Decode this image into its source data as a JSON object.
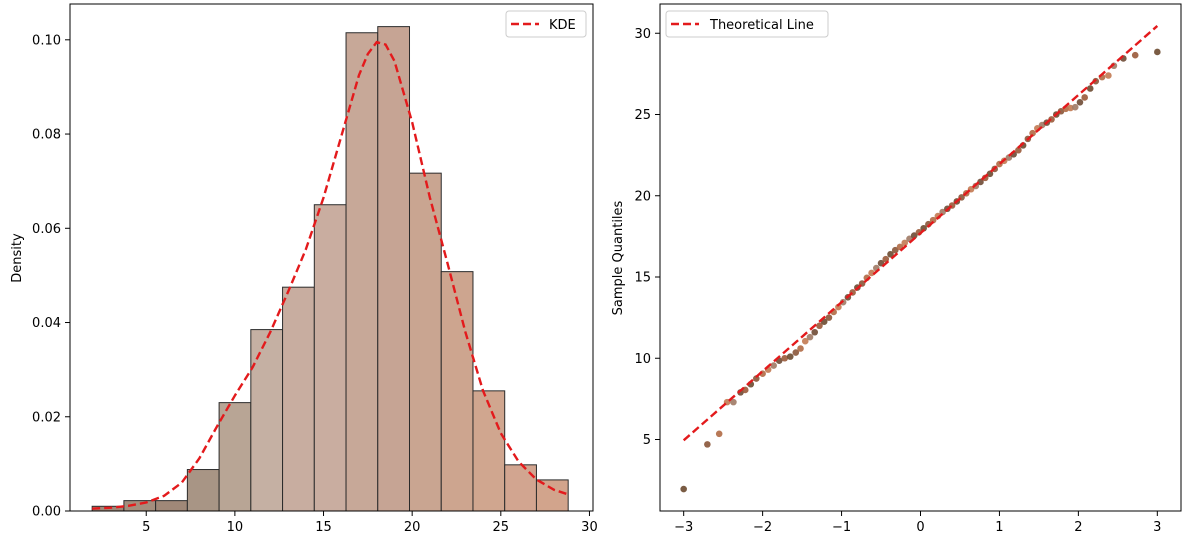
{
  "chart_data": [
    {
      "type": "bar",
      "subtype": "histogram-with-kde",
      "title": "",
      "xlabel": "",
      "ylabel": "Density",
      "xlim": [
        0.7,
        30.2
      ],
      "ylim": [
        0,
        0.1076
      ],
      "xticks": [
        5,
        10,
        15,
        20,
        25,
        30
      ],
      "yticks": [
        0.0,
        0.02,
        0.04,
        0.06,
        0.08,
        0.1
      ],
      "ytick_labels": [
        "0.00",
        "0.02",
        "0.04",
        "0.06",
        "0.08",
        "0.10"
      ],
      "bins": [
        {
          "x0": 1.95,
          "x1": 3.74,
          "density": 0.001
        },
        {
          "x0": 3.74,
          "x1": 5.53,
          "density": 0.0022
        },
        {
          "x0": 5.53,
          "x1": 7.32,
          "density": 0.0022
        },
        {
          "x0": 7.32,
          "x1": 9.11,
          "density": 0.0088
        },
        {
          "x0": 9.11,
          "x1": 10.9,
          "density": 0.023
        },
        {
          "x0": 10.9,
          "x1": 12.69,
          "density": 0.0385
        },
        {
          "x0": 12.69,
          "x1": 14.48,
          "density": 0.0475
        },
        {
          "x0": 14.48,
          "x1": 16.27,
          "density": 0.065
        },
        {
          "x0": 16.27,
          "x1": 18.06,
          "density": 0.1015
        },
        {
          "x0": 18.06,
          "x1": 19.85,
          "density": 0.1028
        },
        {
          "x0": 19.85,
          "x1": 21.64,
          "density": 0.0717
        },
        {
          "x0": 21.64,
          "x1": 23.43,
          "density": 0.0508
        },
        {
          "x0": 23.43,
          "x1": 25.22,
          "density": 0.0255
        },
        {
          "x0": 25.22,
          "x1": 27.01,
          "density": 0.0098
        },
        {
          "x0": 27.01,
          "x1": 28.8,
          "density": 0.0066
        }
      ],
      "bar_colors": [
        "#a08878",
        "#a48e7d",
        "#a08878",
        "#a89585",
        "#b8a595",
        "#c5b0a3",
        "#c8ada0",
        "#c9ada0",
        "#c7a898",
        "#c6a494",
        "#c9a591",
        "#cda58f",
        "#d0a68f",
        "#d2a590",
        "#d2a48c"
      ],
      "kde": {
        "name": "KDE",
        "color": "#e31a1c",
        "x": [
          1.95,
          3,
          4,
          5,
          6,
          7,
          8,
          9,
          10,
          11,
          12,
          13,
          14,
          15,
          16,
          17,
          17.5,
          18,
          18.5,
          19,
          20,
          21,
          22,
          23,
          24,
          25,
          26,
          27,
          28,
          28.9
        ],
        "y": [
          0.0005,
          0.0007,
          0.0011,
          0.0018,
          0.0032,
          0.006,
          0.0112,
          0.018,
          0.0245,
          0.0305,
          0.038,
          0.0465,
          0.0555,
          0.0665,
          0.0795,
          0.0925,
          0.097,
          0.0995,
          0.099,
          0.0955,
          0.0825,
          0.0665,
          0.0525,
          0.038,
          0.0255,
          0.0165,
          0.0105,
          0.0067,
          0.0045,
          0.0034
        ]
      },
      "legend": {
        "position": "top-right",
        "entries": [
          "KDE"
        ]
      }
    },
    {
      "type": "scatter",
      "subtype": "qq-plot",
      "title": "",
      "xlabel": "",
      "ylabel": "Sample Quantiles",
      "xlim": [
        -3.3,
        3.3
      ],
      "ylim": [
        0.6,
        31.8
      ],
      "xticks": [
        -3,
        -2,
        -1,
        0,
        1,
        2,
        3
      ],
      "yticks": [
        5,
        10,
        15,
        20,
        25,
        30
      ],
      "theoretical_line": {
        "name": "Theoretical Line",
        "color": "#e31a1c",
        "x": [
          -3,
          3
        ],
        "y": [
          4.95,
          30.45
        ]
      },
      "point_colors": [
        "#6b4a30",
        "#8a5538",
        "#b06a45",
        "#c27a52",
        "#a07a65",
        "#6f4b35",
        "#9a5a3a"
      ],
      "points": [
        [
          -3.0,
          1.95
        ],
        [
          -2.7,
          4.7
        ],
        [
          -2.55,
          5.35
        ],
        [
          -2.45,
          7.3
        ],
        [
          -2.37,
          7.3
        ],
        [
          -2.28,
          7.9
        ],
        [
          -2.22,
          8.05
        ],
        [
          -2.15,
          8.4
        ],
        [
          -2.08,
          8.75
        ],
        [
          -2.0,
          9.05
        ],
        [
          -1.93,
          9.3
        ],
        [
          -1.86,
          9.55
        ],
        [
          -1.79,
          9.85
        ],
        [
          -1.72,
          10.0
        ],
        [
          -1.65,
          10.1
        ],
        [
          -1.58,
          10.35
        ],
        [
          -1.52,
          10.6
        ],
        [
          -1.46,
          11.05
        ],
        [
          -1.4,
          11.3
        ],
        [
          -1.34,
          11.6
        ],
        [
          -1.28,
          12.0
        ],
        [
          -1.22,
          12.25
        ],
        [
          -1.16,
          12.5
        ],
        [
          -1.1,
          12.85
        ],
        [
          -1.04,
          13.15
        ],
        [
          -0.98,
          13.45
        ],
        [
          -0.92,
          13.75
        ],
        [
          -0.86,
          14.05
        ],
        [
          -0.8,
          14.35
        ],
        [
          -0.74,
          14.6
        ],
        [
          -0.68,
          14.95
        ],
        [
          -0.62,
          15.25
        ],
        [
          -0.56,
          15.55
        ],
        [
          -0.5,
          15.85
        ],
        [
          -0.44,
          16.1
        ],
        [
          -0.38,
          16.4
        ],
        [
          -0.32,
          16.65
        ],
        [
          -0.26,
          16.85
        ],
        [
          -0.2,
          17.1
        ],
        [
          -0.14,
          17.35
        ],
        [
          -0.08,
          17.55
        ],
        [
          -0.02,
          17.75
        ],
        [
          0.04,
          18.0
        ],
        [
          0.1,
          18.25
        ],
        [
          0.16,
          18.5
        ],
        [
          0.22,
          18.75
        ],
        [
          0.28,
          19.0
        ],
        [
          0.34,
          19.2
        ],
        [
          0.4,
          19.4
        ],
        [
          0.46,
          19.65
        ],
        [
          0.52,
          19.9
        ],
        [
          0.58,
          20.15
        ],
        [
          0.64,
          20.4
        ],
        [
          0.7,
          20.6
        ],
        [
          0.76,
          20.85
        ],
        [
          0.82,
          21.1
        ],
        [
          0.88,
          21.35
        ],
        [
          0.94,
          21.65
        ],
        [
          1.0,
          21.95
        ],
        [
          1.06,
          22.15
        ],
        [
          1.12,
          22.35
        ],
        [
          1.18,
          22.55
        ],
        [
          1.24,
          22.8
        ],
        [
          1.3,
          23.1
        ],
        [
          1.36,
          23.5
        ],
        [
          1.42,
          23.85
        ],
        [
          1.48,
          24.15
        ],
        [
          1.54,
          24.35
        ],
        [
          1.6,
          24.5
        ],
        [
          1.66,
          24.7
        ],
        [
          1.72,
          25.0
        ],
        [
          1.78,
          25.2
        ],
        [
          1.84,
          25.35
        ],
        [
          1.9,
          25.4
        ],
        [
          1.96,
          25.45
        ],
        [
          2.02,
          25.75
        ],
        [
          2.08,
          26.05
        ],
        [
          2.15,
          26.6
        ],
        [
          2.22,
          27.05
        ],
        [
          2.3,
          27.3
        ],
        [
          2.38,
          27.4
        ],
        [
          2.45,
          28.0
        ],
        [
          2.57,
          28.45
        ],
        [
          2.72,
          28.65
        ],
        [
          3.0,
          28.85
        ]
      ],
      "legend": {
        "position": "top-left",
        "entries": [
          "Theoretical Line"
        ]
      }
    }
  ]
}
